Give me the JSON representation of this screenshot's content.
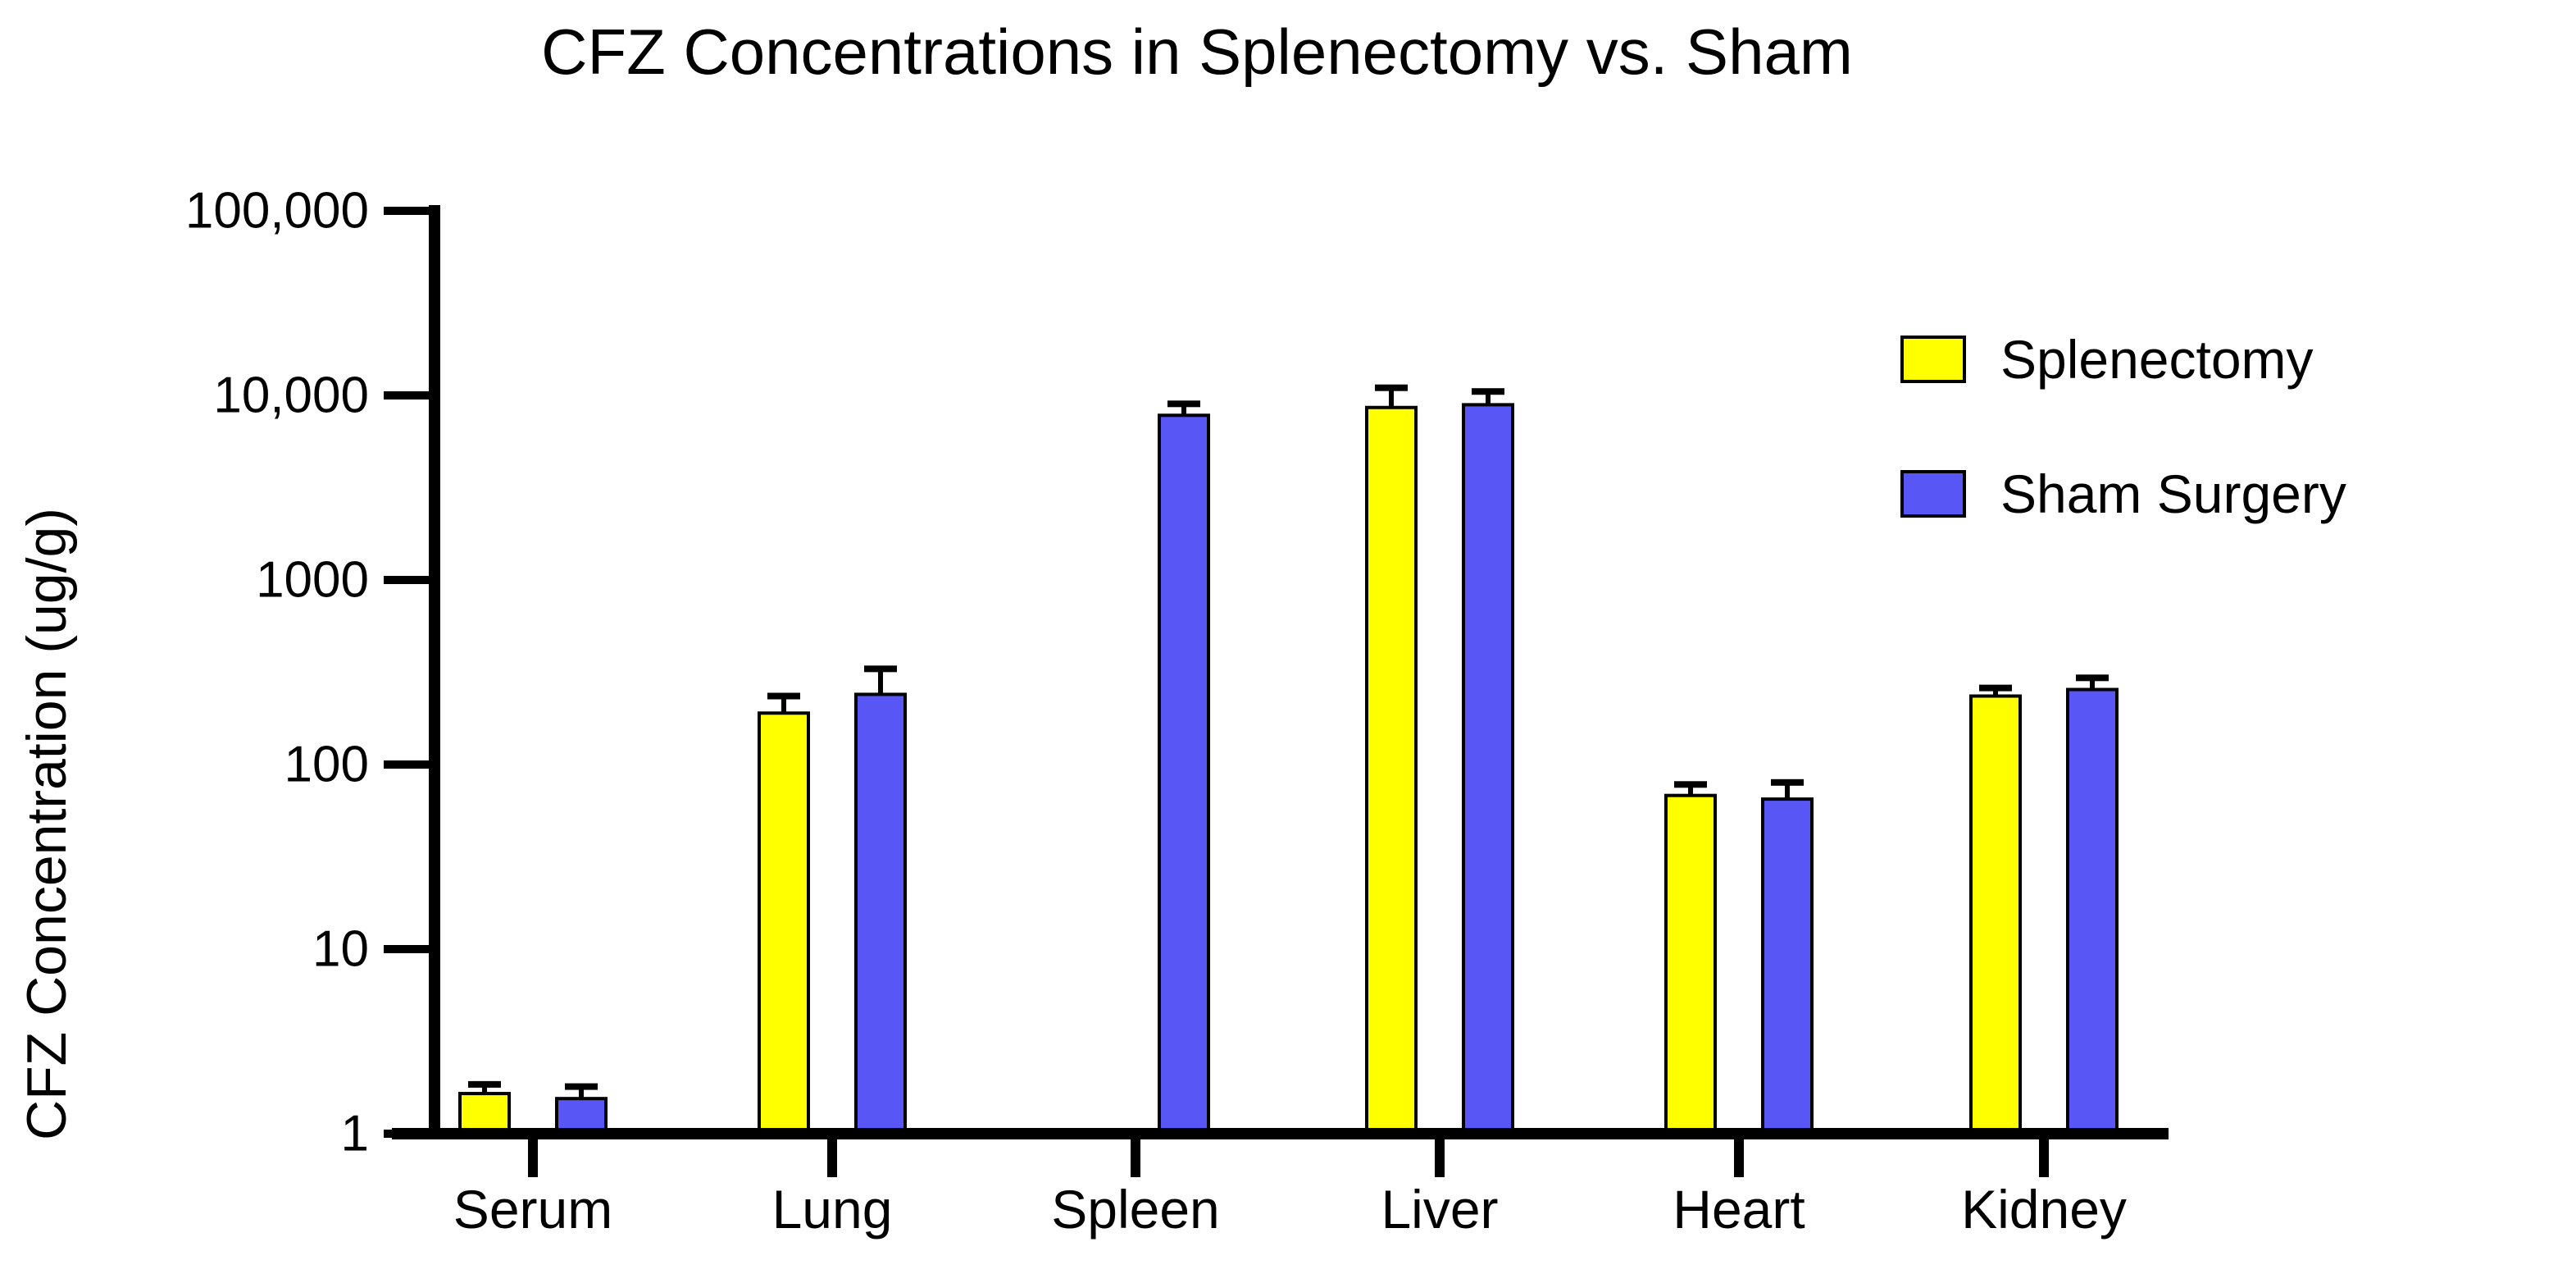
{
  "title": "CFZ Concentrations in Splenectomy vs. Sham",
  "y_axis_label": "CFZ Concentration (ug/g)",
  "chart_data": {
    "type": "bar",
    "title": "CFZ Concentrations in Splenectomy vs. Sham",
    "xlabel": "",
    "ylabel": "CFZ Concentration (ug/g)",
    "yscale": "log10",
    "ylim": [
      1,
      100000
    ],
    "ytick_labels": [
      "100,000",
      "10,000",
      "1000",
      "100",
      "10",
      "1"
    ],
    "ytick_values": [
      100000,
      10000,
      1000,
      100,
      10,
      1
    ],
    "grid": false,
    "legend_position": "top-right",
    "error_bars": "upper",
    "categories": [
      "Serum",
      "Lung",
      "Spleen",
      "Liver",
      "Heart",
      "Kidney"
    ],
    "series": [
      {
        "name": "Splenectomy",
        "color": "#FFFF00",
        "values": [
          1.65,
          190,
          null,
          8600,
          68,
          235
        ],
        "upper_error_tops": [
          1.85,
          235,
          null,
          11000,
          78,
          260
        ]
      },
      {
        "name": "Sham Surgery",
        "color": "#5856F5",
        "values": [
          1.55,
          240,
          7800,
          8900,
          65,
          255
        ],
        "upper_error_tops": [
          1.8,
          330,
          9000,
          10500,
          80,
          295
        ]
      }
    ]
  }
}
